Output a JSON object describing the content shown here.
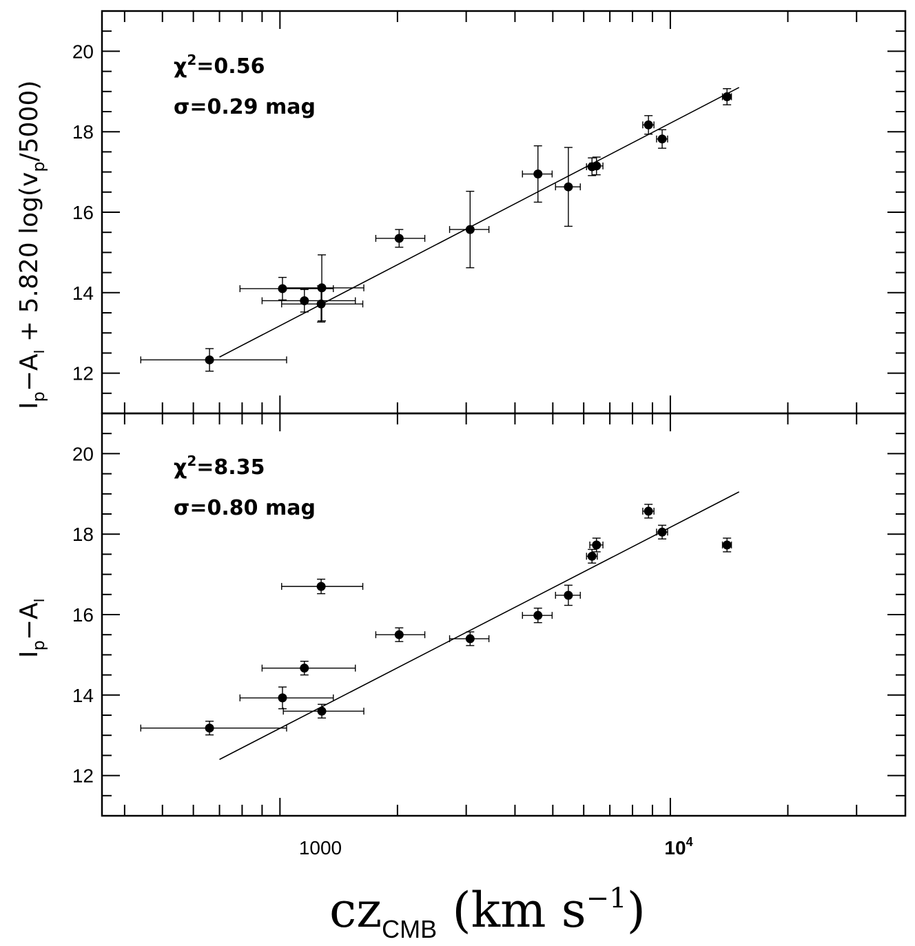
{
  "chart_data": [
    {
      "type": "scatter",
      "panel": "top",
      "xscale": "log",
      "xlim": [
        350,
        40000
      ],
      "ylim": [
        11,
        21
      ],
      "yticks": [
        12,
        14,
        16,
        18,
        20
      ],
      "ylabel_parts": {
        "I": "I",
        "I_sub": "p",
        "minus": "−",
        "A": "A",
        "A_sub": "I",
        "rest": " + 5.820 log(v",
        "v_sub": "p",
        "tail": "/5000)"
      },
      "annotations": [
        {
          "sym": "χ",
          "sup": "2",
          "text": "=0.56"
        },
        {
          "sym": "σ",
          "text": "=0.29 mag"
        }
      ],
      "fit_line": {
        "x": [
          700,
          15000
        ],
        "y": [
          12.4,
          19.1
        ]
      },
      "points": [
        {
          "x": 660,
          "xlo": 440,
          "xhi": 1040,
          "y": 12.33,
          "yerr": 0.28
        },
        {
          "x": 1015,
          "xlo": 790,
          "xhi": 1370,
          "y": 14.1,
          "yerr": 0.28
        },
        {
          "x": 1155,
          "xlo": 900,
          "xhi": 1560,
          "y": 13.8,
          "yerr": 0.28
        },
        {
          "x": 1275,
          "xlo": 1010,
          "xhi": 1630,
          "y": 13.72,
          "yerr": 0.45
        },
        {
          "x": 1280,
          "xlo": 1020,
          "xhi": 1640,
          "y": 14.12,
          "yerr": 0.82
        },
        {
          "x": 2020,
          "xlo": 1760,
          "xhi": 2350,
          "y": 15.35,
          "yerr": 0.22
        },
        {
          "x": 3070,
          "xlo": 2720,
          "xhi": 3430,
          "y": 15.57,
          "yerr": 0.95
        },
        {
          "x": 4580,
          "xlo": 4180,
          "xhi": 4980,
          "y": 16.95,
          "yerr": 0.7
        },
        {
          "x": 5480,
          "xlo": 5080,
          "xhi": 5880,
          "y": 16.63,
          "yerr": 0.98
        },
        {
          "x": 6300,
          "xlo": 6100,
          "xhi": 6500,
          "y": 17.13,
          "yerr": 0.22
        },
        {
          "x": 6470,
          "xlo": 6220,
          "xhi": 6720,
          "y": 17.15,
          "yerr": 0.22
        },
        {
          "x": 8790,
          "xlo": 8500,
          "xhi": 9080,
          "y": 18.17,
          "yerr": 0.23
        },
        {
          "x": 9530,
          "xlo": 9220,
          "xhi": 9840,
          "y": 17.82,
          "yerr": 0.23
        },
        {
          "x": 13970,
          "xlo": 13600,
          "xhi": 14340,
          "y": 18.87,
          "yerr": 0.2
        }
      ]
    },
    {
      "type": "scatter",
      "panel": "bottom",
      "xscale": "log",
      "xlim": [
        350,
        40000
      ],
      "ylim": [
        11,
        21
      ],
      "yticks": [
        12,
        14,
        16,
        18,
        20
      ],
      "ylabel_parts": {
        "I": "I",
        "I_sub": "p",
        "minus": "−",
        "A": "A",
        "A_sub": "I"
      },
      "annotations": [
        {
          "sym": "χ",
          "sup": "2",
          "text": "=8.35"
        },
        {
          "sym": "σ",
          "text": "=0.80 mag"
        }
      ],
      "fit_line": {
        "x": [
          700,
          15000
        ],
        "y": [
          12.4,
          19.05
        ]
      },
      "points": [
        {
          "x": 660,
          "xlo": 440,
          "xhi": 1040,
          "y": 13.18,
          "yerr": 0.17
        },
        {
          "x": 1015,
          "xlo": 790,
          "xhi": 1370,
          "y": 13.93,
          "yerr": 0.27
        },
        {
          "x": 1155,
          "xlo": 900,
          "xhi": 1560,
          "y": 14.67,
          "yerr": 0.17
        },
        {
          "x": 1275,
          "xlo": 1010,
          "xhi": 1630,
          "y": 16.7,
          "yerr": 0.18
        },
        {
          "x": 1280,
          "xlo": 1020,
          "xhi": 1640,
          "y": 13.6,
          "yerr": 0.17
        },
        {
          "x": 2020,
          "xlo": 1760,
          "xhi": 2350,
          "y": 15.5,
          "yerr": 0.17
        },
        {
          "x": 3070,
          "xlo": 2720,
          "xhi": 3430,
          "y": 15.4,
          "yerr": 0.17
        },
        {
          "x": 4580,
          "xlo": 4180,
          "xhi": 4980,
          "y": 15.98,
          "yerr": 0.18
        },
        {
          "x": 5480,
          "xlo": 5080,
          "xhi": 5880,
          "y": 16.48,
          "yerr": 0.25
        },
        {
          "x": 6300,
          "xlo": 6100,
          "xhi": 6500,
          "y": 17.45,
          "yerr": 0.17
        },
        {
          "x": 6470,
          "xlo": 6220,
          "xhi": 6720,
          "y": 17.73,
          "yerr": 0.17
        },
        {
          "x": 8790,
          "xlo": 8500,
          "xhi": 9080,
          "y": 18.57,
          "yerr": 0.17
        },
        {
          "x": 9530,
          "xlo": 9220,
          "xhi": 9840,
          "y": 18.05,
          "yerr": 0.17
        },
        {
          "x": 13970,
          "xlo": 13600,
          "xhi": 14340,
          "y": 17.73,
          "yerr": 0.17
        }
      ]
    }
  ],
  "x_axis": {
    "scale": "log",
    "tick_labels": [
      {
        "value": 1000,
        "text": "1000"
      },
      {
        "value": 10000,
        "base": "10",
        "exp": "4"
      }
    ],
    "label": {
      "main": "cz",
      "sub": "CMB",
      "paren_open": " (km  s",
      "sup": "−1",
      "paren_close": ")"
    }
  }
}
